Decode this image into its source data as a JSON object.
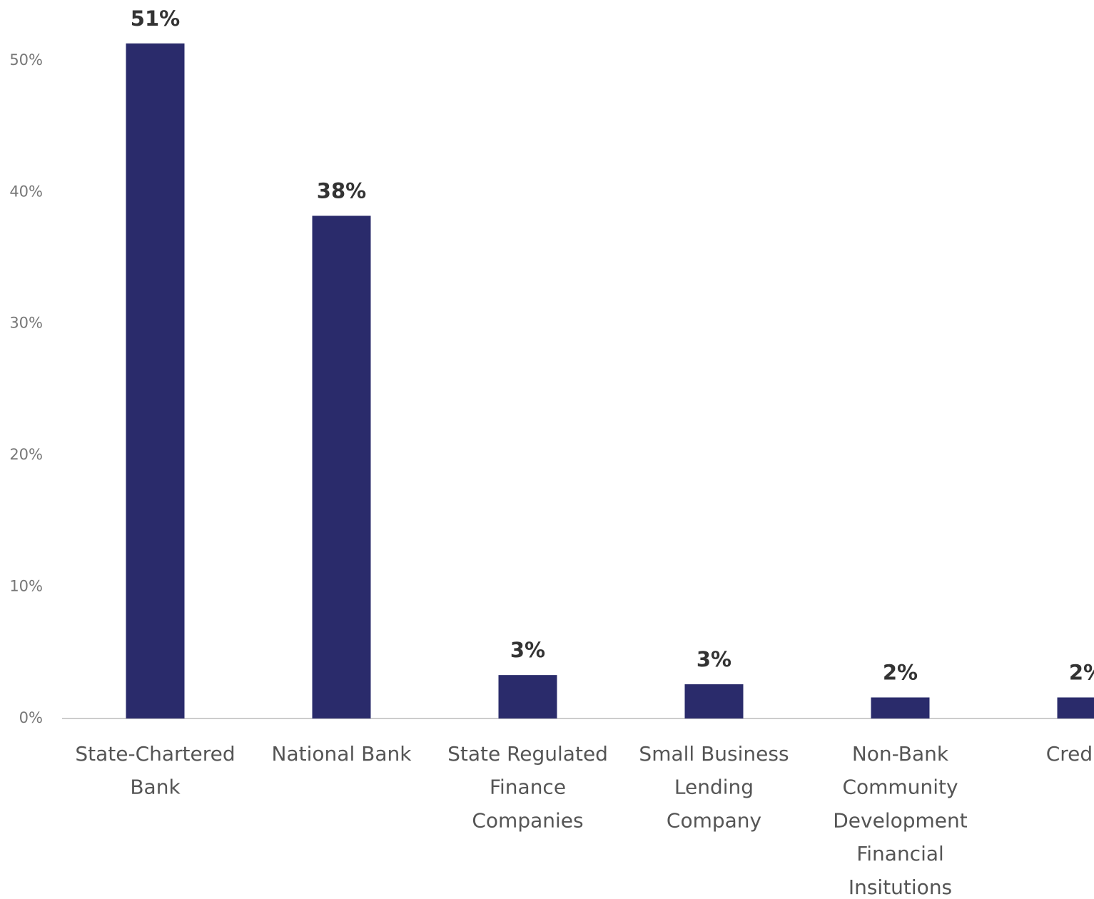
{
  "chart_data": {
    "type": "bar",
    "categories": [
      [
        "State-Chartered",
        "Bank"
      ],
      [
        "National Bank"
      ],
      [
        "State Regulated",
        "Finance",
        "Companies"
      ],
      [
        "Small Business",
        "Lending",
        "Company"
      ],
      [
        "Non-Bank",
        "Community",
        "Development",
        "Financial",
        "Insitutions"
      ],
      [
        "Credit U"
      ]
    ],
    "values": [
      51.3,
      38.2,
      3.3,
      2.6,
      1.6,
      1.6
    ],
    "value_labels": [
      "51%",
      "38%",
      "3%",
      "3%",
      "2%",
      "2%"
    ],
    "color": "#2a2b6b",
    "ylim": [
      0,
      54.6
    ],
    "yticks": [
      {
        "value": 0,
        "label": "0%"
      },
      {
        "value": 10,
        "label": "10%"
      },
      {
        "value": 20,
        "label": "20%"
      },
      {
        "value": 30,
        "label": "30%"
      },
      {
        "value": 40,
        "label": "40%"
      },
      {
        "value": 50,
        "label": "50%"
      }
    ]
  }
}
